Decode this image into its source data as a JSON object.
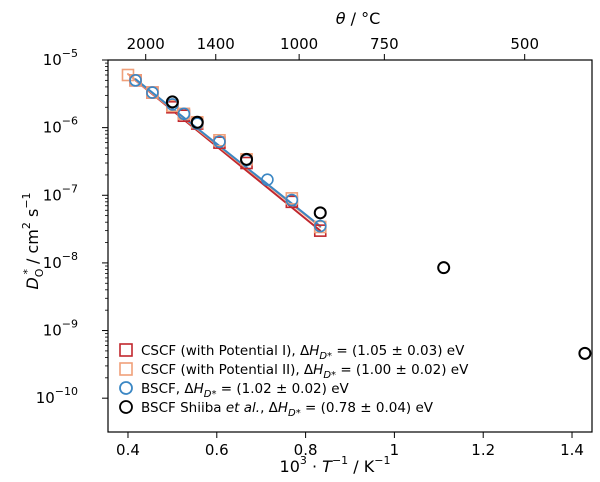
{
  "chart_data": {
    "type": "scatter",
    "title": "",
    "xlabel_parts": [
      "10",
      "3",
      " · ",
      "T",
      "−1",
      " / K",
      "−1"
    ],
    "ylabel_parts": [
      "D",
      "O",
      "*",
      " / cm",
      "2",
      " s",
      "−1"
    ],
    "top_axis_label_parts": [
      "θ",
      " / °C"
    ],
    "xlim": [
      0.355,
      1.445
    ],
    "ylim_log10": [
      -10.5,
      -5
    ],
    "y_log_scale": true,
    "grid": false,
    "legend_position": "lower-left",
    "x_ticks": [
      0.4,
      0.6,
      0.8,
      1,
      1.2,
      1.4
    ],
    "x_tick_labels": [
      "0.4",
      "0.6",
      "0.8",
      "1",
      "1.2",
      "1.4"
    ],
    "y_ticks_exp": [
      -10,
      -9,
      -8,
      -7,
      -6,
      -5
    ],
    "y_tick_base": "10",
    "y_tick_exponents": [
      "−10",
      "−9",
      "−8",
      "−7",
      "−6",
      "−5"
    ],
    "top_ticks_celsius": [
      2000,
      1400,
      1000,
      750,
      500
    ],
    "top_tick_labels": [
      "2000",
      "1400",
      "1000",
      "750",
      "500"
    ],
    "series": [
      {
        "name": "CSCF (with Potential I), ΔH_D* = (1.05 ± 0.03) eV",
        "label_parts": [
          "CSCF (with Potential I), Δ",
          "H",
          "D*",
          " = (1.05 ± 0.03) eV"
        ],
        "marker": "square",
        "color": "#c1272d",
        "x": [
          0.417,
          0.455,
          0.5,
          0.526,
          0.556,
          0.606,
          0.667,
          0.769,
          0.833
        ],
        "y": [
          5e-06,
          3.3e-06,
          2e-06,
          1.5e-06,
          1.15e-06,
          6e-07,
          3e-07,
          8e-08,
          3e-08
        ],
        "fit": {
          "x": [
            0.417,
            0.833
          ],
          "y": [
            5e-06,
            3e-08
          ]
        }
      },
      {
        "name": "CSCF (with Potential II), ΔH_D* = (1.00 ± 0.02) eV",
        "label_parts": [
          "CSCF (with Potential II), Δ",
          "H",
          "D*",
          " = (1.00 ± 0.02) eV"
        ],
        "marker": "square",
        "color": "#f0a07a",
        "x": [
          0.4,
          0.417,
          0.455,
          0.5,
          0.526,
          0.556,
          0.606,
          0.667,
          0.769,
          0.833
        ],
        "y": [
          6e-06,
          5e-06,
          3.3e-06,
          2.1e-06,
          1.6e-06,
          1.2e-06,
          6.5e-07,
          3.4e-07,
          9e-08,
          3.4e-08
        ],
        "fit": {
          "x": [
            0.4,
            0.833
          ],
          "y": [
            6.2e-06,
            3.4e-08
          ]
        }
      },
      {
        "name": "BSCF, ΔH_D* = (1.02 ± 0.02) eV",
        "label_parts": [
          "BSCF, Δ",
          "H",
          "D*",
          " = (1.02 ± 0.02) eV"
        ],
        "marker": "circle-open",
        "color": "#3b87c4",
        "x": [
          0.417,
          0.455,
          0.5,
          0.526,
          0.556,
          0.606,
          0.667,
          0.714,
          0.769,
          0.833
        ],
        "y": [
          5e-06,
          3.3e-06,
          2.2e-06,
          1.6e-06,
          1.15e-06,
          6.2e-07,
          3.3e-07,
          1.7e-07,
          8.5e-08,
          3.5e-08
        ],
        "fit": {
          "x": [
            0.417,
            0.833
          ],
          "y": [
            5.2e-06,
            3.5e-08
          ]
        }
      },
      {
        "name": "BSCF Shiiba et al., ΔH_D* = (0.78 ± 0.04) eV",
        "label_parts": [
          "BSCF Shiiba ",
          "et al.",
          ", Δ",
          "H",
          "D*",
          " = (0.78 ± 0.04) eV"
        ],
        "marker": "circle-open",
        "color": "#000000",
        "x": [
          0.5,
          0.556,
          0.667,
          0.833,
          1.111,
          1.429
        ],
        "y": [
          2.4e-06,
          1.2e-06,
          3.4e-07,
          5.5e-08,
          8.5e-09,
          4.6e-10
        ]
      }
    ]
  }
}
